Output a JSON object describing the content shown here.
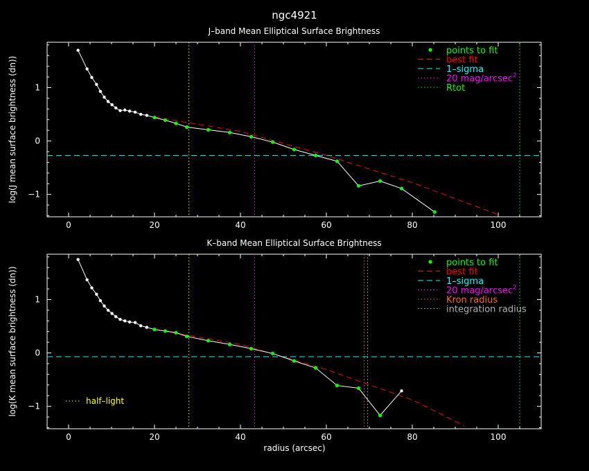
{
  "figure": {
    "title": "ngc4921",
    "shared_xlabel": "radius (arcsec)"
  },
  "colors": {
    "background": "#000000",
    "axes": "#ffffff",
    "profile": "#ffffff",
    "fit_points": "#00ff00",
    "best_fit": "#ff0000",
    "sigma": "#00ffff",
    "mag20": "#ff00ff",
    "rtot": "#00ff00",
    "kron": "#ff6a00",
    "integration": "#b0b0b0",
    "half_light": "#ffff00"
  },
  "chart_data": [
    {
      "type": "line",
      "title": "J–band Mean Elliptical Surface Brightness",
      "xlabel": "",
      "ylabel": "log(J mean surface brightness (dn))",
      "xlim": [
        -5,
        110
      ],
      "ylim": [
        -1.42,
        1.85
      ],
      "xticks": [
        0,
        20,
        40,
        60,
        80,
        100
      ],
      "xtick_labels": [
        "0",
        "20",
        "40",
        "60",
        "80",
        "100"
      ],
      "yticks": [
        -1,
        0,
        1
      ],
      "ytick_labels": [
        "−1",
        "0",
        "1"
      ],
      "profile": {
        "x": [
          2.2,
          4.3,
          5.4,
          6.5,
          7.4,
          8.3,
          9.2,
          10.1,
          11.0,
          12.0,
          13.1,
          14.2,
          15.5,
          16.8,
          18.2,
          20.0,
          22.5,
          25.0,
          27.5,
          32.5,
          37.5,
          42.5,
          47.5,
          52.5,
          57.5,
          62.5,
          67.5,
          72.5,
          77.5,
          85.2
        ],
        "y": [
          1.7,
          1.35,
          1.19,
          1.06,
          0.93,
          0.82,
          0.74,
          0.68,
          0.62,
          0.57,
          0.58,
          0.56,
          0.54,
          0.5,
          0.48,
          0.44,
          0.39,
          0.33,
          0.26,
          0.21,
          0.16,
          0.08,
          -0.02,
          -0.16,
          -0.27,
          -0.38,
          -0.84,
          -0.75,
          -0.89,
          -1.33
        ]
      },
      "fit_points": {
        "x": [
          20.0,
          22.5,
          25.0,
          27.5,
          32.5,
          37.5,
          42.5,
          47.5,
          52.5,
          57.5,
          62.5,
          67.5,
          72.5,
          77.5,
          85.2
        ],
        "y": [
          0.44,
          0.39,
          0.33,
          0.26,
          0.21,
          0.16,
          0.08,
          -0.02,
          -0.16,
          -0.27,
          -0.38,
          -0.84,
          -0.75,
          -0.89,
          -1.33
        ]
      },
      "best_fit": {
        "x": [
          20,
          40,
          60,
          80,
          100
        ],
        "y": [
          0.45,
          0.18,
          -0.27,
          -0.78,
          -1.38
        ]
      },
      "sigma_level": -0.27,
      "vlines": [
        {
          "key": "mag20",
          "x": 43.3
        },
        {
          "key": "rtot",
          "x": 105.0
        },
        {
          "key": "half_light",
          "x": 28.0
        }
      ],
      "legend": {
        "placement": "top-right",
        "entries": [
          {
            "key": "fit_points",
            "label": "points to fit",
            "style": "point"
          },
          {
            "key": "best_fit",
            "label": "best fit",
            "style": "dashed"
          },
          {
            "key": "sigma",
            "label": "1–sigma",
            "style": "dashed"
          },
          {
            "key": "mag20",
            "label": "20 mag/arcsec",
            "sup": "2",
            "style": "dotted"
          },
          {
            "key": "rtot",
            "label": "Rtot",
            "style": "dotted"
          }
        ]
      }
    },
    {
      "type": "line",
      "title": "K–band Mean Elliptical Surface Brightness",
      "xlabel": "radius (arcsec)",
      "ylabel": "log(K mean surface brightness (dn))",
      "xlim": [
        -5,
        110
      ],
      "ylim": [
        -1.42,
        1.85
      ],
      "xticks": [
        0,
        20,
        40,
        60,
        80,
        100
      ],
      "xtick_labels": [
        "0",
        "20",
        "40",
        "60",
        "80",
        "100"
      ],
      "yticks": [
        -1,
        0,
        1
      ],
      "ytick_labels": [
        "−1",
        "0",
        "1"
      ],
      "profile": {
        "x": [
          2.2,
          4.3,
          5.4,
          6.5,
          7.4,
          8.3,
          9.2,
          10.1,
          11.0,
          12.0,
          13.1,
          14.2,
          15.5,
          16.8,
          18.2,
          20.0,
          22.5,
          25.0,
          27.5,
          32.5,
          37.5,
          42.5,
          47.5,
          52.5,
          57.5,
          62.5,
          67.5,
          72.5,
          77.5
        ],
        "y": [
          1.75,
          1.37,
          1.22,
          1.1,
          0.98,
          0.88,
          0.8,
          0.74,
          0.68,
          0.63,
          0.6,
          0.58,
          0.57,
          0.51,
          0.48,
          0.44,
          0.41,
          0.38,
          0.31,
          0.23,
          0.16,
          0.08,
          -0.01,
          -0.15,
          -0.28,
          -0.61,
          -0.66,
          -1.17,
          -0.71
        ]
      },
      "fit_points": {
        "x": [
          20.0,
          22.5,
          25.0,
          27.5,
          32.5,
          37.5,
          42.5,
          47.5,
          52.5,
          57.5,
          62.5,
          67.5,
          72.5
        ],
        "y": [
          0.44,
          0.41,
          0.38,
          0.31,
          0.23,
          0.16,
          0.08,
          -0.01,
          -0.15,
          -0.28,
          -0.61,
          -0.66,
          -1.17
        ]
      },
      "best_fit": {
        "x": [
          20,
          40,
          60,
          80,
          92
        ],
        "y": [
          0.44,
          0.16,
          -0.31,
          -0.88,
          -1.36
        ]
      },
      "sigma_level": -0.07,
      "vlines": [
        {
          "key": "mag20",
          "x": 43.3
        },
        {
          "key": "kron",
          "x": 68.8
        },
        {
          "key": "integration",
          "x": 69.6
        },
        {
          "key": "rtot",
          "x": 105.0
        },
        {
          "key": "half_light",
          "x": 28.0
        }
      ],
      "legend": {
        "placement": "top-right",
        "entries": [
          {
            "key": "fit_points",
            "label": "points to fit",
            "style": "point"
          },
          {
            "key": "best_fit",
            "label": "best fit",
            "style": "dashed"
          },
          {
            "key": "sigma",
            "label": "1–sigma",
            "style": "dashed"
          },
          {
            "key": "mag20",
            "label": "20 mag/arcsec",
            "sup": "2",
            "style": "dotted"
          },
          {
            "key": "kron",
            "label": "Kron radius",
            "style": "dotted"
          },
          {
            "key": "integration",
            "label": "integration radius",
            "style": "dotted"
          }
        ]
      },
      "note": {
        "key": "half_light",
        "label": "half–light",
        "placement": "lower-left"
      }
    }
  ]
}
